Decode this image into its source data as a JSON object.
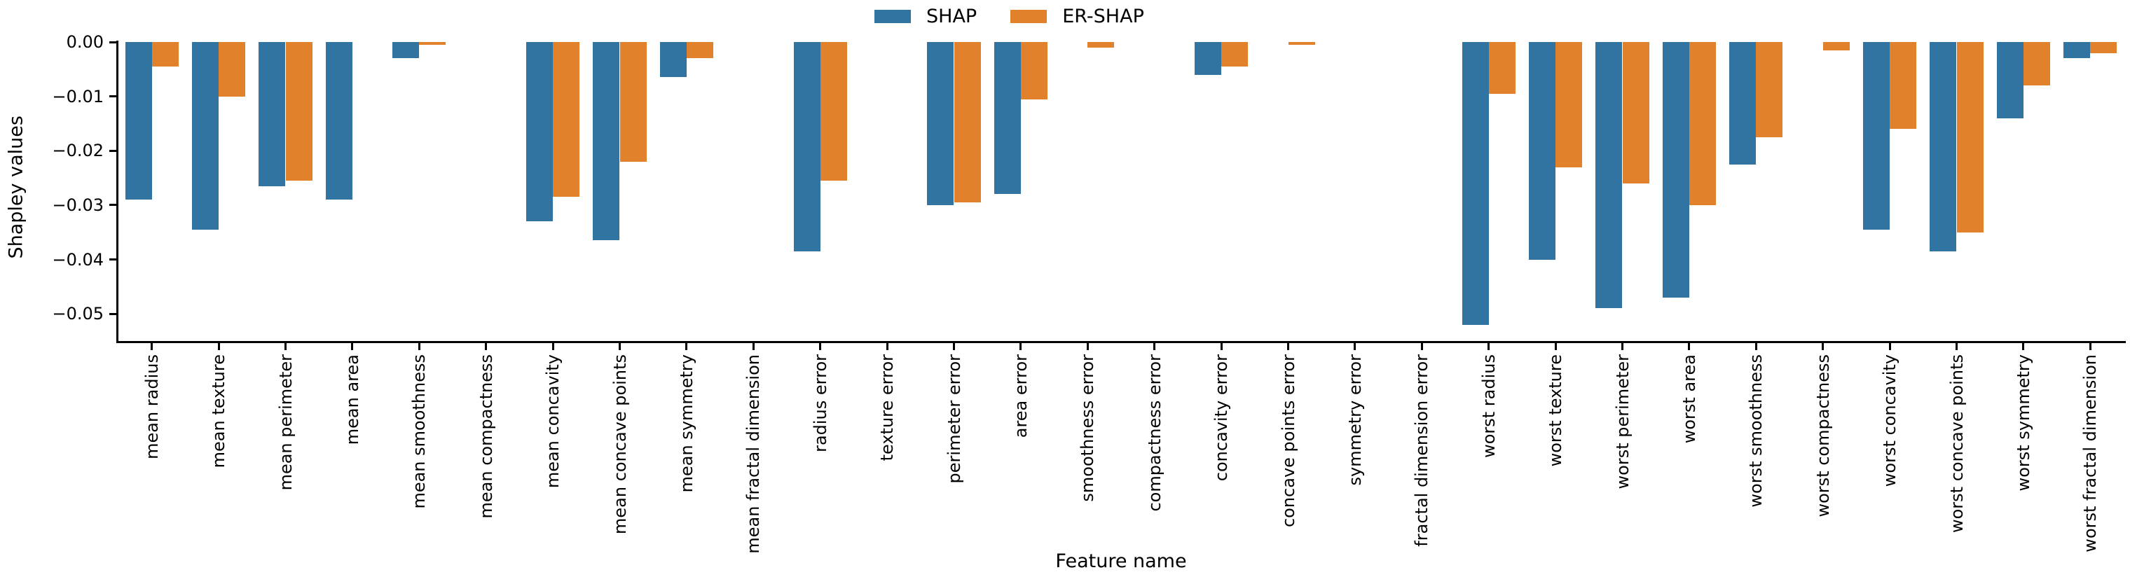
{
  "chart_data": {
    "type": "bar",
    "title": "",
    "xlabel": "Feature name",
    "ylabel": "Shapley values",
    "categories": [
      "mean radius",
      "mean texture",
      "mean perimeter",
      "mean area",
      "mean smoothness",
      "mean compactness",
      "mean concavity",
      "mean concave points",
      "mean symmetry",
      "mean fractal dimension",
      "radius error",
      "texture error",
      "perimeter error",
      "area error",
      "smoothness error",
      "compactness error",
      "concavity error",
      "concave points error",
      "symmetry error",
      "fractal dimension error",
      "worst radius",
      "worst texture",
      "worst perimeter",
      "worst area",
      "worst smoothness",
      "worst compactness",
      "worst concavity",
      "worst concave points",
      "worst symmetry",
      "worst fractal dimension"
    ],
    "series": [
      {
        "name": "SHAP",
        "color": "#3274a1",
        "values": [
          -0.029,
          -0.0345,
          -0.0265,
          -0.029,
          -0.003,
          0,
          -0.033,
          -0.0365,
          -0.0065,
          0,
          -0.0385,
          0,
          -0.03,
          -0.028,
          0,
          0,
          -0.006,
          0,
          0,
          0,
          -0.052,
          -0.04,
          -0.049,
          -0.047,
          -0.0225,
          0,
          -0.0345,
          -0.0385,
          -0.014,
          -0.003
        ]
      },
      {
        "name": "ER-SHAP",
        "color": "#e1812c",
        "values": [
          -0.0045,
          -0.01,
          -0.0255,
          0,
          -0.0005,
          0,
          -0.0285,
          -0.022,
          -0.003,
          0,
          -0.0255,
          0,
          -0.0295,
          -0.0105,
          -0.001,
          0,
          -0.0045,
          -0.0005,
          0,
          0,
          -0.0095,
          -0.023,
          -0.026,
          -0.03,
          -0.0175,
          -0.0015,
          -0.016,
          -0.035,
          -0.008,
          -0.002
        ]
      }
    ],
    "ylim": [
      -0.055,
      0
    ],
    "yticks": [
      0,
      -0.01,
      -0.02,
      -0.03,
      -0.04,
      -0.05
    ],
    "ytick_labels": [
      "0.00",
      "−0.01",
      "−0.02",
      "−0.03",
      "−0.04",
      "−0.05"
    ],
    "legend_position": "top-center",
    "grid": false,
    "bar_group_width": 0.8
  }
}
